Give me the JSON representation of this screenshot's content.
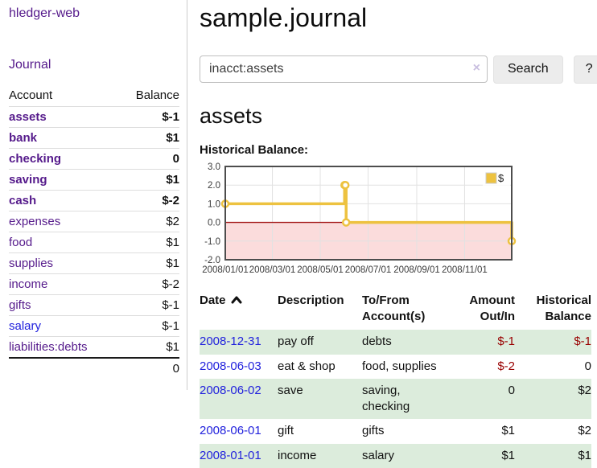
{
  "app": {
    "brand": "hledger-web",
    "title": "sample.journal"
  },
  "sidebar": {
    "journal_link": "Journal",
    "accounts": {
      "col_account": "Account",
      "col_balance": "Balance",
      "rows": [
        {
          "name": "assets",
          "balance": "$-1"
        },
        {
          "name": "bank",
          "balance": "$1"
        },
        {
          "name": "checking",
          "balance": "0"
        },
        {
          "name": "saving",
          "balance": "$1"
        },
        {
          "name": "cash",
          "balance": "$-2"
        },
        {
          "name": "expenses",
          "balance": "$2"
        },
        {
          "name": "food",
          "balance": "$1"
        },
        {
          "name": "supplies",
          "balance": "$1"
        },
        {
          "name": "income",
          "balance": "$-2"
        },
        {
          "name": "gifts",
          "balance": "$-1"
        },
        {
          "name": "salary",
          "balance": "$-1"
        },
        {
          "name": "liabilities:debts",
          "balance": "$1"
        }
      ],
      "total": "0"
    }
  },
  "search": {
    "query": "inacct:assets",
    "clear": "×",
    "search_button": "Search",
    "help_button": "?"
  },
  "account_view": {
    "heading": "assets",
    "chart_title": "Historical Balance:"
  },
  "chart_data": {
    "type": "line",
    "style": "step",
    "title": "Historical Balance",
    "series": [
      {
        "name": "$",
        "points": [
          [
            "2008-01-01",
            1
          ],
          [
            "2008-06-01",
            2
          ],
          [
            "2008-06-02",
            2
          ],
          [
            "2008-06-03",
            0
          ],
          [
            "2008-12-31",
            -1
          ]
        ]
      }
    ],
    "x_ticks": [
      "2008/01/01",
      "2008/03/01",
      "2008/05/01",
      "2008/07/01",
      "2008/09/01",
      "2008/11/01"
    ],
    "y_ticks": [
      3.0,
      2.0,
      1.0,
      0.0,
      -1.0,
      -2.0
    ],
    "ylim": [
      -2,
      3
    ],
    "x_range": [
      "2008-01-01",
      "2008-12-31"
    ],
    "legend": {
      "label": "$",
      "position": "top-right"
    },
    "grid": true,
    "negative_region_shaded": true
  },
  "register": {
    "headers": {
      "date": "Date",
      "description": "Description",
      "accounts": "To/From\nAccount(s)",
      "amount": "Amount\nOut/In",
      "balance": "Historical\nBalance"
    },
    "rows": [
      {
        "date": "2008-12-31",
        "description": "pay off",
        "accounts": "debts",
        "amount": "$-1",
        "balance": "$-1"
      },
      {
        "date": "2008-06-03",
        "description": "eat & shop",
        "accounts": "food, supplies",
        "amount": "$-2",
        "balance": "0"
      },
      {
        "date": "2008-06-02",
        "description": "save",
        "accounts": "saving,\nchecking",
        "amount": "0",
        "balance": "$2"
      },
      {
        "date": "2008-06-01",
        "description": "gift",
        "accounts": "gifts",
        "amount": "$1",
        "balance": "$2"
      },
      {
        "date": "2008-01-01",
        "description": "income",
        "accounts": "salary",
        "amount": "$1",
        "balance": "$1"
      }
    ]
  },
  "colors": {
    "link_purple": "#551a8b",
    "link_blue": "#2222dd",
    "negative_strong": "#990000",
    "negative_soft": "#c17a7a",
    "row_stripe_green": "#dcecdc",
    "chart_series": "#edc240",
    "chart_negative_fill": "#fbdcdc",
    "chart_zero_line": "#a21515",
    "chart_grid": "#e2e2e2",
    "chart_border": "#4d4d4d"
  }
}
